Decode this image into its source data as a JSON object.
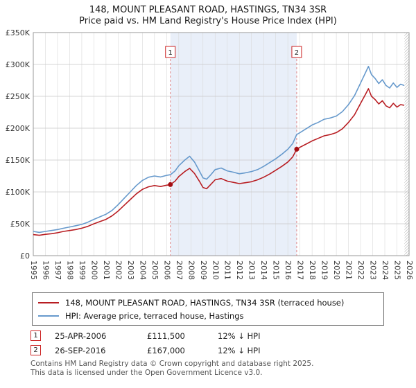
{
  "title": "148, MOUNT PLEASANT ROAD, HASTINGS, TN34 3SR",
  "subtitle": "Price paid vs. HM Land Registry's House Price Index (HPI)",
  "chart_data": {
    "type": "line",
    "title": "148, MOUNT PLEASANT ROAD, HASTINGS, TN34 3SR — Price paid vs. HPI",
    "xlabel": "",
    "ylabel": "",
    "x_range": [
      1995,
      2026
    ],
    "y_range": [
      0,
      350000
    ],
    "grid": true,
    "legend_position": "bottom",
    "y_ticks": [
      {
        "value": 0,
        "label": "£0"
      },
      {
        "value": 50000,
        "label": "£50K"
      },
      {
        "value": 100000,
        "label": "£100K"
      },
      {
        "value": 150000,
        "label": "£150K"
      },
      {
        "value": 200000,
        "label": "£200K"
      },
      {
        "value": 250000,
        "label": "£250K"
      },
      {
        "value": 300000,
        "label": "£300K"
      },
      {
        "value": 350000,
        "label": "£350K"
      }
    ],
    "colors": {
      "price_paid_line": "#b81d22",
      "hpi_line": "#6699cc",
      "band": "#e9eff9",
      "event_line": "#e08888",
      "event_box": "#cc2222",
      "marker": "#a50d12",
      "gridline": "#d9d9d9"
    },
    "shaded_region": [
      2006.31,
      2016.73
    ],
    "hatch_region": [
      2025.62,
      2026
    ],
    "sales": [
      {
        "label": "1",
        "x": 2006.31,
        "value": 111500
      },
      {
        "label": "2",
        "x": 2016.73,
        "value": 167000
      }
    ],
    "series": [
      {
        "name": "148, MOUNT PLEASANT ROAD, HASTINGS, TN34 3SR (terraced house)",
        "color": "#b81d22",
        "points": [
          [
            1995.0,
            33000
          ],
          [
            1995.5,
            32000
          ],
          [
            1996.0,
            33500
          ],
          [
            1996.5,
            34500
          ],
          [
            1997.0,
            36000
          ],
          [
            1997.5,
            38000
          ],
          [
            1998.0,
            39500
          ],
          [
            1998.5,
            41000
          ],
          [
            1999.0,
            43000
          ],
          [
            1999.5,
            46000
          ],
          [
            2000.0,
            50000
          ],
          [
            2000.5,
            53500
          ],
          [
            2001.0,
            57000
          ],
          [
            2001.5,
            62500
          ],
          [
            2002.0,
            70000
          ],
          [
            2002.5,
            79000
          ],
          [
            2003.0,
            88000
          ],
          [
            2003.5,
            97000
          ],
          [
            2004.0,
            104000
          ],
          [
            2004.5,
            108000
          ],
          [
            2005.0,
            110000
          ],
          [
            2005.5,
            108500
          ],
          [
            2006.0,
            110500
          ],
          [
            2006.31,
            111500
          ],
          [
            2006.7,
            117000
          ],
          [
            2007.0,
            124000
          ],
          [
            2007.5,
            132000
          ],
          [
            2007.9,
            137000
          ],
          [
            2008.3,
            129000
          ],
          [
            2008.7,
            117000
          ],
          [
            2009.0,
            107000
          ],
          [
            2009.3,
            105000
          ],
          [
            2009.6,
            111000
          ],
          [
            2010.0,
            119000
          ],
          [
            2010.5,
            121000
          ],
          [
            2011.0,
            117000
          ],
          [
            2011.5,
            115000
          ],
          [
            2012.0,
            113000
          ],
          [
            2012.5,
            114500
          ],
          [
            2013.0,
            116000
          ],
          [
            2013.5,
            119000
          ],
          [
            2014.0,
            123000
          ],
          [
            2014.5,
            128000
          ],
          [
            2015.0,
            134000
          ],
          [
            2015.5,
            140000
          ],
          [
            2016.0,
            147000
          ],
          [
            2016.4,
            155000
          ],
          [
            2016.73,
            167000
          ],
          [
            2017.0,
            170000
          ],
          [
            2017.5,
            175000
          ],
          [
            2018.0,
            180000
          ],
          [
            2018.5,
            184000
          ],
          [
            2019.0,
            188000
          ],
          [
            2019.5,
            190000
          ],
          [
            2020.0,
            193000
          ],
          [
            2020.5,
            199000
          ],
          [
            2021.0,
            209000
          ],
          [
            2021.5,
            221000
          ],
          [
            2022.0,
            239000
          ],
          [
            2022.4,
            253000
          ],
          [
            2022.65,
            262000
          ],
          [
            2022.9,
            250000
          ],
          [
            2023.2,
            245000
          ],
          [
            2023.5,
            238000
          ],
          [
            2023.8,
            243000
          ],
          [
            2024.1,
            235000
          ],
          [
            2024.4,
            232000
          ],
          [
            2024.7,
            239000
          ],
          [
            2025.0,
            233000
          ],
          [
            2025.3,
            237000
          ],
          [
            2025.6,
            236000
          ]
        ]
      },
      {
        "name": "HPI: Average price, terraced house, Hastings",
        "color": "#6699cc",
        "points": [
          [
            1995.0,
            38000
          ],
          [
            1995.5,
            36500
          ],
          [
            1996.0,
            38000
          ],
          [
            1996.5,
            39500
          ],
          [
            1997.0,
            41000
          ],
          [
            1997.5,
            43000
          ],
          [
            1998.0,
            45000
          ],
          [
            1998.5,
            47000
          ],
          [
            1999.0,
            49000
          ],
          [
            1999.5,
            52500
          ],
          [
            2000.0,
            57000
          ],
          [
            2000.5,
            61000
          ],
          [
            2001.0,
            65000
          ],
          [
            2001.5,
            71000
          ],
          [
            2002.0,
            80000
          ],
          [
            2002.5,
            90000
          ],
          [
            2003.0,
            100000
          ],
          [
            2003.5,
            110000
          ],
          [
            2004.0,
            118000
          ],
          [
            2004.5,
            123000
          ],
          [
            2005.0,
            125000
          ],
          [
            2005.5,
            123500
          ],
          [
            2006.0,
            126000
          ],
          [
            2006.31,
            127000
          ],
          [
            2006.7,
            133000
          ],
          [
            2007.0,
            141000
          ],
          [
            2007.5,
            150000
          ],
          [
            2007.9,
            156000
          ],
          [
            2008.3,
            147000
          ],
          [
            2008.7,
            133000
          ],
          [
            2009.0,
            122000
          ],
          [
            2009.3,
            120000
          ],
          [
            2009.6,
            126000
          ],
          [
            2010.0,
            135000
          ],
          [
            2010.5,
            137500
          ],
          [
            2011.0,
            133000
          ],
          [
            2011.5,
            131000
          ],
          [
            2012.0,
            128500
          ],
          [
            2012.5,
            130000
          ],
          [
            2013.0,
            132000
          ],
          [
            2013.5,
            135000
          ],
          [
            2014.0,
            140000
          ],
          [
            2014.5,
            146000
          ],
          [
            2015.0,
            152000
          ],
          [
            2015.5,
            159000
          ],
          [
            2016.0,
            167000
          ],
          [
            2016.4,
            176000
          ],
          [
            2016.73,
            190000
          ],
          [
            2017.0,
            193000
          ],
          [
            2017.5,
            199000
          ],
          [
            2018.0,
            205000
          ],
          [
            2018.5,
            209000
          ],
          [
            2019.0,
            214000
          ],
          [
            2019.5,
            216000
          ],
          [
            2020.0,
            219000
          ],
          [
            2020.5,
            226000
          ],
          [
            2021.0,
            237000
          ],
          [
            2021.5,
            251000
          ],
          [
            2022.0,
            271000
          ],
          [
            2022.4,
            287000
          ],
          [
            2022.65,
            297000
          ],
          [
            2022.9,
            284000
          ],
          [
            2023.2,
            278000
          ],
          [
            2023.5,
            270000
          ],
          [
            2023.8,
            276000
          ],
          [
            2024.1,
            267000
          ],
          [
            2024.4,
            263000
          ],
          [
            2024.7,
            271000
          ],
          [
            2025.0,
            264000
          ],
          [
            2025.3,
            269000
          ],
          [
            2025.6,
            267000
          ]
        ]
      }
    ]
  },
  "legend": {
    "items": [
      {
        "label": "148, MOUNT PLEASANT ROAD, HASTINGS, TN34 3SR (terraced house)",
        "color": "#b81d22"
      },
      {
        "label": "HPI: Average price, terraced house, Hastings",
        "color": "#6699cc"
      }
    ]
  },
  "annotations": [
    {
      "num": "1",
      "date": "25-APR-2006",
      "price": "£111,500",
      "hpi": "12% ↓ HPI"
    },
    {
      "num": "2",
      "date": "26-SEP-2016",
      "price": "£167,000",
      "hpi": "12% ↓ HPI"
    }
  ],
  "footer": {
    "line1": "Contains HM Land Registry data © Crown copyright and database right 2025.",
    "line2": "This data is licensed under the Open Government Licence v3.0."
  }
}
